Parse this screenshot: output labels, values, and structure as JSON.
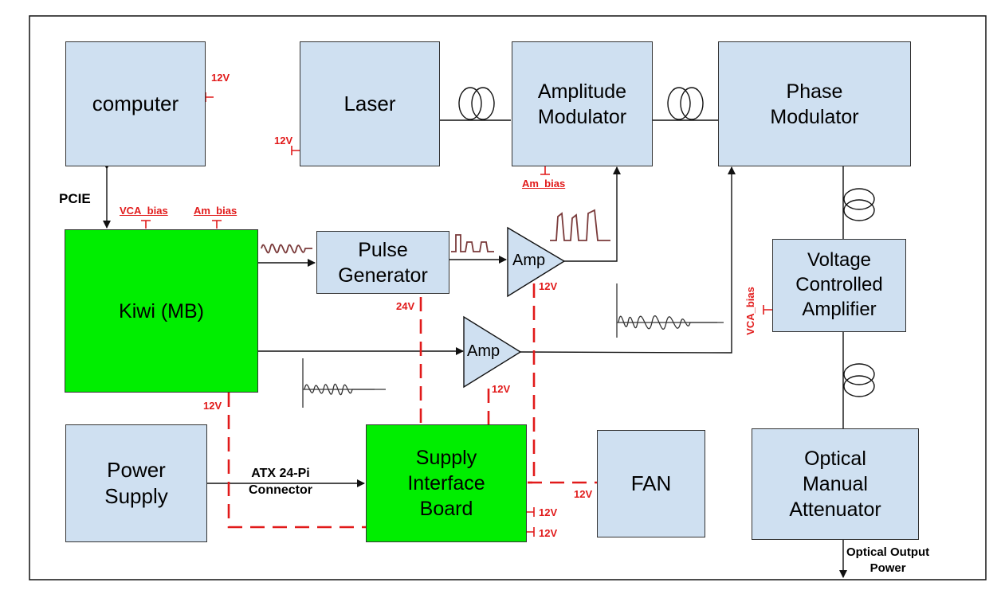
{
  "blocks": {
    "computer": "computer",
    "laser": "Laser",
    "amplitude_modulator": "Amplitude\nModulator",
    "phase_modulator": "Phase\nModulator",
    "kiwi": "Kiwi (MB)",
    "pulse_generator": "Pulse\nGenerator",
    "vca": "Voltage\nControlled\nAmplifier",
    "power_supply": "Power\nSupply",
    "supply_interface_board": "Supply\nInterface\nBoard",
    "fan": "FAN",
    "attenuator": "Optical\nManual\nAttenuator"
  },
  "amps": {
    "amp_top": "Amp",
    "amp_bottom": "Amp"
  },
  "labels": {
    "pcie": "PCIE",
    "atx": "ATX 24-Pi\nConnector",
    "optical_output": "Optical Output\nPower"
  },
  "voltages": {
    "computer_12v": "12V",
    "laser_12v": "12V",
    "am_bias": "Am_bias",
    "vca_bias_kiwi": "VCA_bias",
    "am_bias_kiwi": "Am_bias",
    "amp_top_12v": "12V",
    "pulse_24v": "24V",
    "amp_bottom_12v": "12V",
    "kiwi_12v": "12V",
    "fan_12v": "12V",
    "sib_12v_a": "12V",
    "sib_12v_b": "12V",
    "vca_bias_side": "VCA_bias"
  },
  "colors": {
    "block_blue": "#cfe0f1",
    "block_green": "#00ee00",
    "power_red": "#e11a1a",
    "line": "#222222"
  }
}
